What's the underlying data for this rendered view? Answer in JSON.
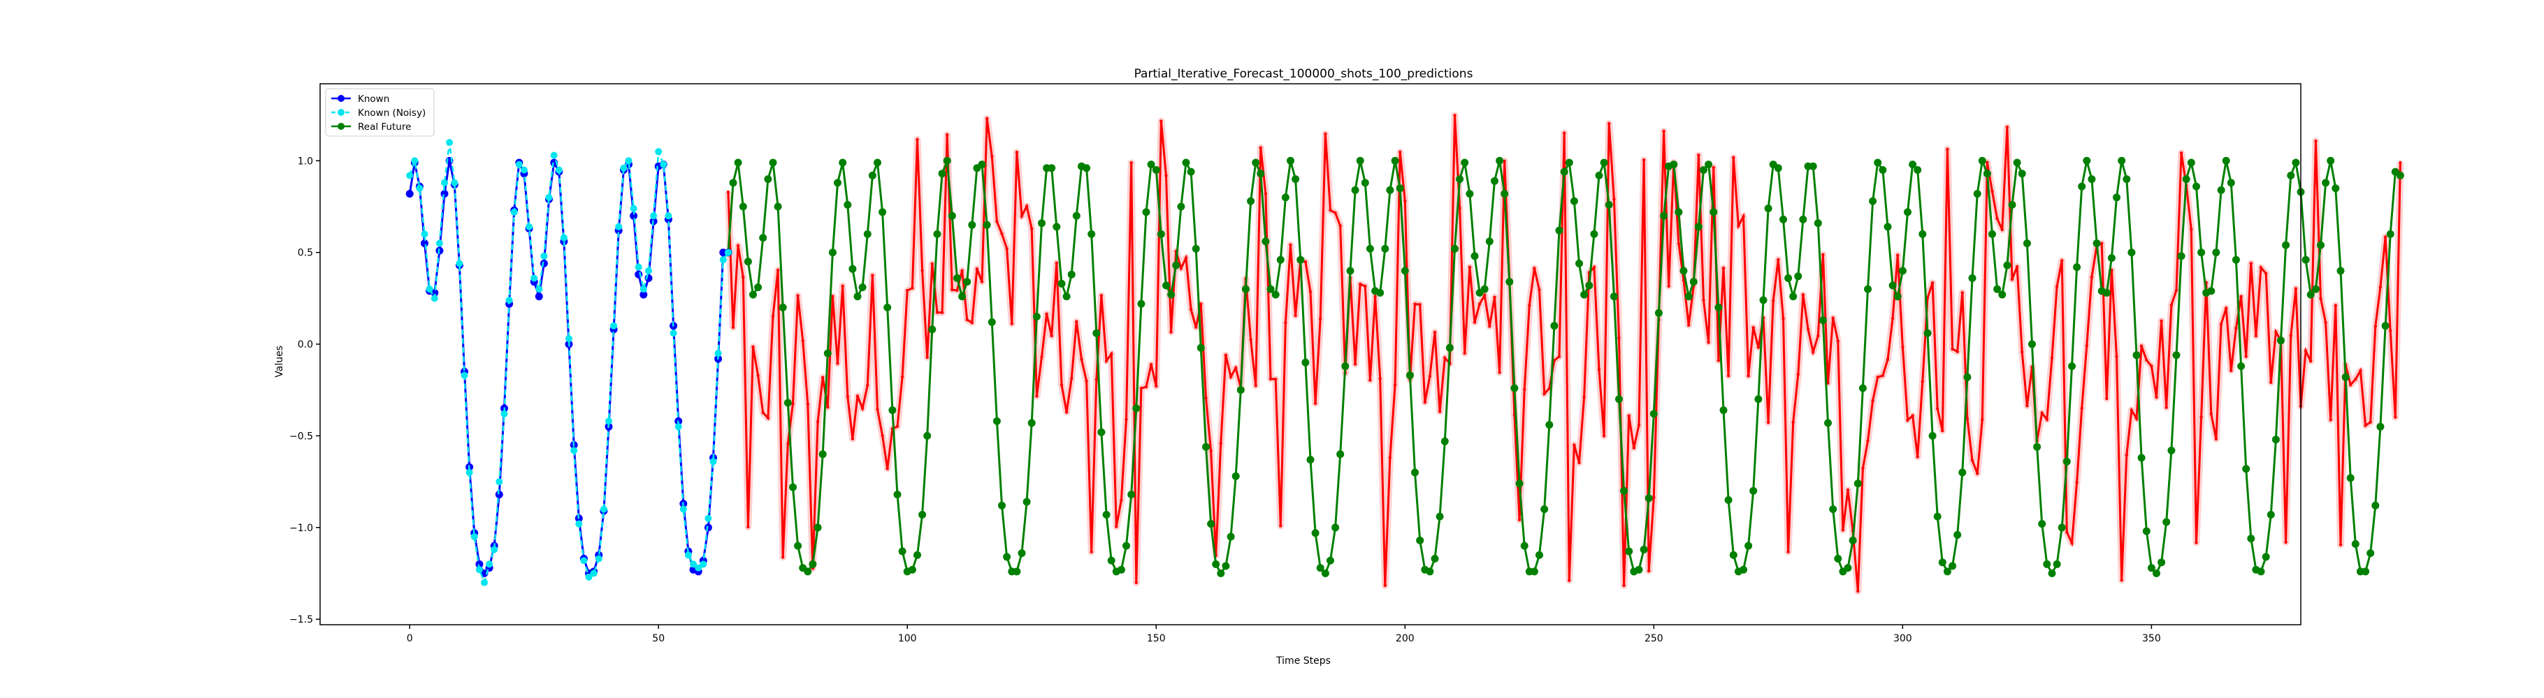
{
  "chart_data": {
    "type": "line",
    "title": "Partial_Iterative_Forecast_100000_shots_100_predictions",
    "xlabel": "Time Steps",
    "ylabel": "Values",
    "xlim": [
      -18,
      380
    ],
    "ylim": [
      -1.53,
      1.42
    ],
    "xticks": [
      0,
      50,
      100,
      150,
      200,
      250,
      300,
      350
    ],
    "yticks": [
      -1.5,
      -1.0,
      -0.5,
      0.0,
      0.5,
      1.0
    ],
    "ytick_labels": [
      "−1.5",
      "−1.0",
      "−0.5",
      "0.0",
      "0.5",
      "1.0"
    ],
    "grid": false,
    "legend_position": "upper-left",
    "colors": {
      "known": "#0000ff",
      "known_noisy": "#00e5ee",
      "real_future": "#008000",
      "forecast": "#ff0000"
    },
    "series": [
      {
        "name": "Known",
        "key": "known",
        "x_start": 0
      },
      {
        "name": "Known (Noisy)",
        "key": "noisy",
        "x_start": 0
      },
      {
        "name": "Real Future",
        "key": "future",
        "x_start": 64
      }
    ],
    "known": [
      0.82,
      0.99,
      0.86,
      0.55,
      0.29,
      0.28,
      0.51,
      0.82,
      1.0,
      0.87,
      0.43,
      -0.15,
      -0.67,
      -1.03,
      -1.2,
      -1.25,
      -1.22,
      -1.1,
      -0.82,
      -0.35,
      0.22,
      0.73,
      0.99,
      0.93,
      0.63,
      0.34,
      0.26,
      0.44,
      0.79,
      0.99,
      0.94,
      0.56,
      0.0,
      -0.55,
      -0.95,
      -1.17,
      -1.25,
      -1.24,
      -1.15,
      -0.91,
      -0.45,
      0.08,
      0.62,
      0.95,
      0.98,
      0.7,
      0.38,
      0.27,
      0.36,
      0.67,
      0.97,
      0.98,
      0.68,
      0.1,
      -0.42,
      -0.87,
      -1.13,
      -1.23,
      -1.24,
      -1.18,
      -1.0,
      -0.62,
      -0.08,
      0.5,
      0.5
    ],
    "noisy": [
      0.92,
      1.0,
      0.85,
      0.6,
      0.3,
      0.25,
      0.55,
      0.88,
      1.1,
      0.88,
      0.44,
      -0.17,
      -0.7,
      -1.05,
      -1.23,
      -1.3,
      -1.2,
      -1.12,
      -0.75,
      -0.38,
      0.24,
      0.72,
      0.98,
      0.95,
      0.64,
      0.36,
      0.3,
      0.48,
      0.8,
      1.03,
      0.95,
      0.58,
      0.03,
      -0.58,
      -0.98,
      -1.18,
      -1.27,
      -1.25,
      -1.17,
      -0.9,
      -0.42,
      0.1,
      0.64,
      0.96,
      1.0,
      0.74,
      0.42,
      0.3,
      0.4,
      0.7,
      1.05,
      0.98,
      0.7,
      0.06,
      -0.45,
      -0.9,
      -1.15,
      -1.2,
      -1.22,
      -1.2,
      -0.95,
      -0.64,
      -0.05,
      0.46,
      0.5
    ],
    "future": [
      0.5,
      0.88,
      0.99,
      0.75,
      0.45,
      0.27,
      0.31,
      0.58,
      0.9,
      0.99,
      0.75,
      0.2,
      -0.32,
      -0.78,
      -1.1,
      -1.22,
      -1.24,
      -1.2,
      -1.0,
      -0.6,
      -0.05,
      0.5,
      0.88,
      0.99,
      0.76,
      0.41,
      0.26,
      0.31,
      0.6,
      0.92,
      0.99,
      0.72,
      0.2,
      -0.36,
      -0.82,
      -1.13,
      -1.24,
      -1.23,
      -1.15,
      -0.93,
      -0.5,
      0.08,
      0.6,
      0.93,
      1.0,
      0.7,
      0.36,
      0.26,
      0.34,
      0.65,
      0.96,
      0.98,
      0.65,
      0.12,
      -0.42,
      -0.88,
      -1.16,
      -1.24,
      -1.24,
      -1.14,
      -0.86,
      -0.43,
      0.15,
      0.66,
      0.96,
      0.96,
      0.64,
      0.33,
      0.26,
      0.38,
      0.7,
      0.97,
      0.96,
      0.6,
      0.06,
      -0.48,
      -0.93,
      -1.18,
      -1.24,
      -1.23,
      -1.1,
      -0.82,
      -0.35,
      0.22,
      0.72,
      0.98,
      0.95,
      0.6,
      0.32,
      0.27,
      0.43,
      0.75,
      0.99,
      0.94,
      0.52,
      -0.02,
      -0.56,
      -0.98,
      -1.2,
      -1.25,
      -1.21,
      -1.05,
      -0.72,
      -0.25,
      0.3,
      0.78,
      0.99,
      0.93,
      0.56,
      0.3,
      0.27,
      0.46,
      0.8,
      1.0,
      0.9,
      0.46,
      -0.1,
      -0.63,
      -1.03,
      -1.22,
      -1.25,
      -1.18,
      -1.0,
      -0.6,
      -0.12,
      0.4,
      0.84,
      1.0,
      0.88,
      0.52,
      0.29,
      0.28,
      0.52,
      0.84,
      1.0,
      0.85,
      0.4,
      -0.17,
      -0.7,
      -1.07,
      -1.23,
      -1.24,
      -1.17,
      -0.94,
      -0.53,
      -0.02,
      0.52,
      0.9,
      0.99,
      0.82,
      0.48,
      0.28,
      0.3,
      0.56,
      0.89,
      1.0,
      0.82,
      0.34,
      -0.24,
      -0.76,
      -1.1,
      -1.24,
      -1.24,
      -1.15,
      -0.9,
      -0.44,
      0.1,
      0.62,
      0.94,
      0.99,
      0.78,
      0.44,
      0.27,
      0.32,
      0.6,
      0.92,
      0.99,
      0.76,
      0.26,
      -0.3,
      -0.8,
      -1.13,
      -1.24,
      -1.23,
      -1.12,
      -0.84,
      -0.38,
      0.17,
      0.7,
      0.97,
      0.98,
      0.72,
      0.4,
      0.26,
      0.34,
      0.64,
      0.95,
      0.98,
      0.72,
      0.2,
      -0.36,
      -0.85,
      -1.15,
      -1.24,
      -1.23,
      -1.1,
      -0.8,
      -0.3,
      0.24,
      0.74,
      0.98,
      0.96,
      0.68,
      0.36,
      0.26,
      0.37,
      0.68,
      0.97,
      0.97,
      0.66,
      0.13,
      -0.43,
      -0.9,
      -1.17,
      -1.24,
      -1.22,
      -1.07,
      -0.76,
      -0.24,
      0.3,
      0.78,
      0.99,
      0.95,
      0.64,
      0.32,
      0.26,
      0.4,
      0.72,
      0.98,
      0.95,
      0.6,
      0.06,
      -0.5,
      -0.94,
      -1.19,
      -1.24,
      -1.21,
      -1.04,
      -0.7,
      -0.18,
      0.36,
      0.82,
      1.0,
      0.93,
      0.6,
      0.3,
      0.27,
      0.43,
      0.76,
      0.99,
      0.93,
      0.55,
      0.0,
      -0.56,
      -0.98,
      -1.2,
      -1.25,
      -1.2,
      -1.0,
      -0.64,
      -0.12,
      0.42,
      0.86,
      1.0,
      0.9,
      0.55,
      0.29,
      0.28,
      0.47,
      0.8,
      1.0,
      0.9,
      0.5,
      -0.06,
      -0.62,
      -1.02,
      -1.22,
      -1.25,
      -1.19,
      -0.97,
      -0.58,
      -0.06,
      0.48,
      0.9,
      0.99,
      0.86,
      0.5,
      0.28,
      0.29,
      0.5,
      0.84,
      1.0,
      0.88,
      0.46,
      -0.12,
      -0.68,
      -1.06,
      -1.23,
      -1.24,
      -1.16,
      -0.93,
      -0.52,
      0.02,
      0.54,
      0.92,
      0.99,
      0.83,
      0.46,
      0.27,
      0.3,
      0.54,
      0.88,
      1.0,
      0.85,
      0.4,
      -0.18,
      -0.73,
      -1.09,
      -1.24,
      -1.24,
      -1.14,
      -0.88,
      -0.45,
      0.1,
      0.6,
      0.94,
      0.92
    ]
  }
}
